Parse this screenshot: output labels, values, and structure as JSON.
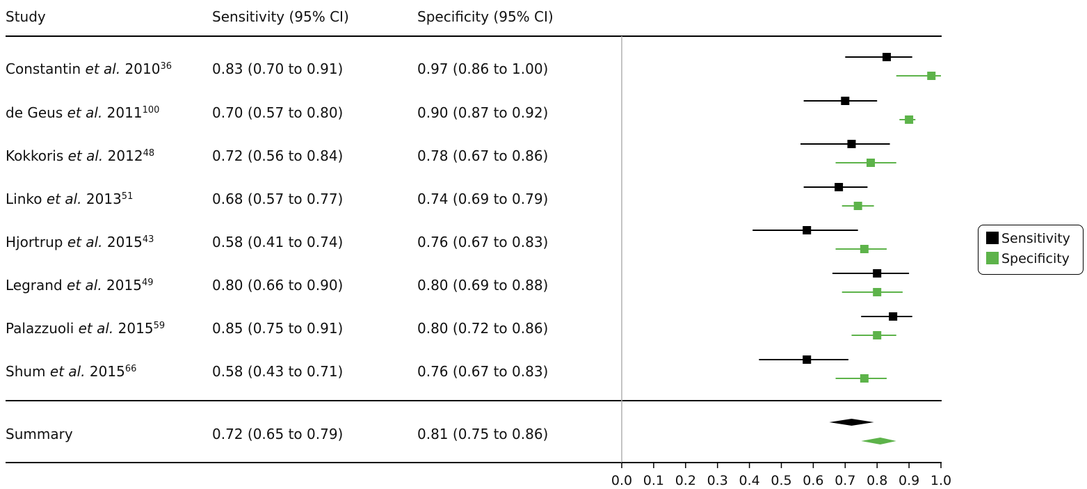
{
  "header": {
    "study": "Study",
    "sensitivity": "Sensitivity (95% CI)",
    "specificity": "Specificity (95% CI)"
  },
  "studies": [
    {
      "author": "Constantin ",
      "etal": "et al.",
      "year": " 2010",
      "ref": "36",
      "sens_text": "0.83 (0.70 to 0.91)",
      "spec_text": "0.97 (0.86 to 1.00)"
    },
    {
      "author": "de Geus ",
      "etal": "et al.",
      "year": " 2011",
      "ref": "100",
      "sens_text": "0.70 (0.57 to 0.80)",
      "spec_text": "0.90 (0.87 to 0.92)"
    },
    {
      "author": "Kokkoris ",
      "etal": "et al.",
      "year": " 2012",
      "ref": "48",
      "sens_text": "0.72 (0.56 to 0.84)",
      "spec_text": "0.78 (0.67 to 0.86)"
    },
    {
      "author": "Linko ",
      "etal": "et al.",
      "year": " 2013",
      "ref": "51",
      "sens_text": "0.68 (0.57 to 0.77)",
      "spec_text": "0.74 (0.69 to 0.79)"
    },
    {
      "author": "Hjortrup ",
      "etal": "et al.",
      "year": " 2015",
      "ref": "43",
      "sens_text": "0.58 (0.41 to 0.74)",
      "spec_text": "0.76 (0.67 to 0.83)"
    },
    {
      "author": "Legrand ",
      "etal": "et al.",
      "year": " 2015",
      "ref": "49",
      "sens_text": "0.80 (0.66 to 0.90)",
      "spec_text": "0.80 (0.69 to 0.88)"
    },
    {
      "author": "Palazzuoli ",
      "etal": "et al.",
      "year": " 2015",
      "ref": "59",
      "sens_text": "0.85 (0.75 to 0.91)",
      "spec_text": "0.80 (0.72 to 0.86)"
    },
    {
      "author": "Shum ",
      "etal": "et al.",
      "year": " 2015",
      "ref": "66",
      "sens_text": "0.58 (0.43 to 0.71)",
      "spec_text": "0.76 (0.67 to 0.83)"
    }
  ],
  "summary": {
    "label": "Summary",
    "sens_text": "0.72 (0.65 to 0.79)",
    "spec_text": "0.81 (0.75 to 0.86)"
  },
  "legend": {
    "sensitivity": "Sensitivity",
    "specificity": "Specificity"
  },
  "colors": {
    "sensitivity": "#000000",
    "specificity": "#5db34a",
    "reference_line": "#b0b0b0"
  },
  "chart_data": {
    "type": "forest",
    "xlim": [
      0,
      1
    ],
    "xticks": [
      "0.0",
      "0.1",
      "0.2",
      "0.3",
      "0.4",
      "0.5",
      "0.6",
      "0.7",
      "0.8",
      "0.9",
      "1.0"
    ],
    "reference_x": 0,
    "series": [
      {
        "name": "Sensitivity",
        "points": [
          {
            "est": 0.83,
            "lo": 0.7,
            "hi": 0.91
          },
          {
            "est": 0.7,
            "lo": 0.57,
            "hi": 0.8
          },
          {
            "est": 0.72,
            "lo": 0.56,
            "hi": 0.84
          },
          {
            "est": 0.68,
            "lo": 0.57,
            "hi": 0.77
          },
          {
            "est": 0.58,
            "lo": 0.41,
            "hi": 0.74
          },
          {
            "est": 0.8,
            "lo": 0.66,
            "hi": 0.9
          },
          {
            "est": 0.85,
            "lo": 0.75,
            "hi": 0.91
          },
          {
            "est": 0.58,
            "lo": 0.43,
            "hi": 0.71
          }
        ],
        "summary": {
          "est": 0.72,
          "lo": 0.65,
          "hi": 0.79
        }
      },
      {
        "name": "Specificity",
        "points": [
          {
            "est": 0.97,
            "lo": 0.86,
            "hi": 1.0
          },
          {
            "est": 0.9,
            "lo": 0.87,
            "hi": 0.92
          },
          {
            "est": 0.78,
            "lo": 0.67,
            "hi": 0.86
          },
          {
            "est": 0.74,
            "lo": 0.69,
            "hi": 0.79
          },
          {
            "est": 0.76,
            "lo": 0.67,
            "hi": 0.83
          },
          {
            "est": 0.8,
            "lo": 0.69,
            "hi": 0.88
          },
          {
            "est": 0.8,
            "lo": 0.72,
            "hi": 0.86
          },
          {
            "est": 0.76,
            "lo": 0.67,
            "hi": 0.83
          }
        ],
        "summary": {
          "est": 0.81,
          "lo": 0.75,
          "hi": 0.86
        }
      }
    ],
    "legend_position": "right"
  }
}
